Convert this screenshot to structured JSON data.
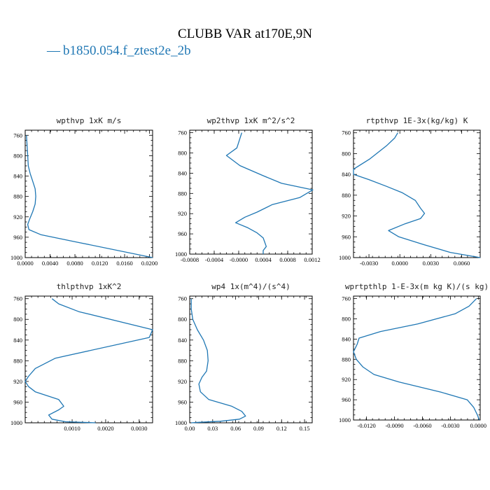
{
  "figure": {
    "title": "CLUBB VAR at170E,9N",
    "legend": {
      "dash": "—",
      "label": "b1850.054.f_ztest2e_2b",
      "color": "#1f77b4"
    }
  },
  "chart_data": [
    {
      "type": "line",
      "title": "wpthvp  1xK m/s",
      "xlim": [
        0,
        0.0205
      ],
      "xticks": [
        0,
        0.004,
        0.008,
        0.012,
        0.016,
        0.02
      ],
      "xtick_labels": [
        "0.0000",
        "0.0040",
        "0.0080",
        "0.0120",
        "0.0160",
        "0.0200"
      ],
      "ylim": [
        1000,
        750
      ],
      "yticks": [
        760,
        800,
        840,
        880,
        920,
        960,
        1000
      ],
      "series": [
        {
          "color": "#1f77b4",
          "x": [
            0.0002,
            0.0003,
            0.0004,
            0.0005,
            0.0008,
            0.0012,
            0.0016,
            0.0017,
            0.0016,
            0.0012,
            0.0007,
            0.0004,
            0.0006,
            0.0025,
            0.0085,
            0.0205
          ],
          "y": [
            760,
            780,
            800,
            820,
            835,
            850,
            865,
            880,
            895,
            910,
            925,
            935,
            945,
            955,
            970,
            1000
          ]
        }
      ]
    },
    {
      "type": "line",
      "title": "wp2thvp  1xK m^2/s^2",
      "xlim": [
        -0.0008,
        0.0012
      ],
      "xticks": [
        -0.0008,
        -0.0004,
        0,
        0.0004,
        0.0008,
        0.0012
      ],
      "xtick_labels": [
        "-0.0008",
        "-0.0004",
        "-0.0000",
        "0.0004",
        "0.0008",
        "0.0012"
      ],
      "ylim": [
        1000,
        755
      ],
      "yticks": [
        760,
        800,
        840,
        880,
        920,
        960,
        1000
      ],
      "series": [
        {
          "color": "#1f77b4",
          "x": [
            5e-05,
            1e-05,
            -3e-05,
            -0.0002,
            2e-05,
            0.0004,
            0.0007,
            0.00121,
            0.001,
            0.00055,
            0.0003,
            0.0001,
            -5e-05,
            0.00015,
            0.0003,
            0.0004,
            0.00045,
            0.0004,
            0.0004
          ],
          "y": [
            760,
            775,
            790,
            805,
            825,
            845,
            860,
            873,
            888,
            902,
            917,
            927,
            938,
            948,
            958,
            968,
            985,
            993,
            1000
          ]
        }
      ]
    },
    {
      "type": "line",
      "title": "rtpthvp  1E-3x(kg/kg) K",
      "xlim": [
        -0.0045,
        0.0078
      ],
      "xticks": [
        -0.003,
        0,
        0.003,
        0.006
      ],
      "xtick_labels": [
        "-0.0030",
        "0.0000",
        "0.0030",
        "0.0060"
      ],
      "ylim": [
        1000,
        755
      ],
      "yticks": [
        760,
        800,
        840,
        880,
        920,
        960,
        1000
      ],
      "series": [
        {
          "color": "#1f77b4",
          "x": [
            -0.0002,
            -0.0005,
            -0.0013,
            -0.0029,
            -0.0045,
            -0.0045,
            -0.003,
            -0.0013,
            0.0002,
            0.0015,
            0.002,
            0.0024,
            0.002,
            0.0005,
            -0.0011,
            -0.0001,
            0.0023,
            0.0049,
            0.0078
          ],
          "y": [
            760,
            770,
            785,
            810,
            830,
            840,
            850,
            863,
            875,
            890,
            905,
            915,
            925,
            935,
            948,
            960,
            975,
            990,
            1000
          ]
        }
      ]
    },
    {
      "type": "line",
      "title": "thlpthvp  1xK^2",
      "xlim": [
        -0.0004,
        0.0034
      ],
      "xticks": [
        0.001,
        0.002,
        0.003
      ],
      "xtick_labels": [
        "0.0010",
        "0.0020",
        "0.0030"
      ],
      "ylim": [
        1000,
        755
      ],
      "yticks": [
        760,
        800,
        840,
        880,
        920,
        960,
        1000
      ],
      "series": [
        {
          "color": "#1f77b4",
          "x": [
            0.0004,
            0.0006,
            0.0012,
            0.0034,
            0.0033,
            0.0005,
            -0.0001,
            -0.0003,
            -0.0004,
            -0.0003,
            -0.0001,
            0.0006,
            0.00075,
            0.0006,
            0.0003,
            0.0004,
            0.0008,
            0.0017
          ],
          "y": [
            760,
            770,
            785,
            820,
            835,
            875,
            895,
            910,
            920,
            930,
            940,
            955,
            968,
            975,
            985,
            993,
            998,
            1000
          ]
        }
      ]
    },
    {
      "type": "line",
      "title": "wp4  1x(m^4)/(s^4)",
      "xlim": [
        0,
        0.16
      ],
      "xticks": [
        0,
        0.03,
        0.06,
        0.09,
        0.12,
        0.15
      ],
      "xtick_labels": [
        "0.00",
        "0.03",
        "0.06",
        "0.09",
        "0.12",
        "0.15"
      ],
      "ylim": [
        1000,
        755
      ],
      "yticks": [
        760,
        800,
        840,
        880,
        920,
        960,
        1000
      ],
      "series": [
        {
          "color": "#1f77b4",
          "x": [
            0.002,
            0.002,
            0.004,
            0.01,
            0.018,
            0.023,
            0.024,
            0.022,
            0.016,
            0.012,
            0.014,
            0.025,
            0.055,
            0.068,
            0.073,
            0.065,
            0.04,
            0.012,
            0.002
          ],
          "y": [
            760,
            780,
            800,
            820,
            840,
            860,
            880,
            900,
            912,
            925,
            940,
            955,
            968,
            978,
            987,
            993,
            997,
            999,
            1000
          ]
        }
      ]
    },
    {
      "type": "line",
      "title": "wprtpthlp  1-E-3x(m kg K)/(s kg)",
      "xlim": [
        -0.0134,
        0.0002
      ],
      "xticks": [
        -0.012,
        -0.009,
        -0.006,
        -0.003,
        0
      ],
      "xtick_labels": [
        "-0.0120",
        "-0.0090",
        "-0.0060",
        "-0.0030",
        "0.0000"
      ],
      "ylim": [
        1000,
        755
      ],
      "yticks": [
        760,
        800,
        840,
        880,
        920,
        960,
        1000
      ],
      "series": [
        {
          "color": "#1f77b4",
          "x": [
            -0.0002,
            -0.001,
            -0.0025,
            -0.0065,
            -0.0105,
            -0.0128,
            -0.013,
            -0.0134,
            -0.0131,
            -0.0124,
            -0.0112,
            -0.0085,
            -0.004,
            -0.0012,
            -0.0005,
            -0.0001,
            0.0001
          ],
          "y": [
            760,
            775,
            790,
            810,
            825,
            838,
            850,
            865,
            880,
            895,
            910,
            925,
            945,
            960,
            975,
            990,
            1000
          ]
        }
      ]
    }
  ]
}
